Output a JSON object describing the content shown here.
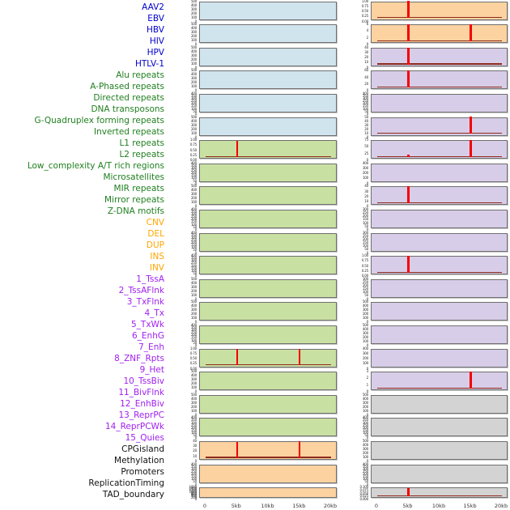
{
  "x_axis": {
    "tick_labels": [
      "0",
      "5kb",
      "10kb",
      "15kb",
      "20kb"
    ]
  },
  "colors": {
    "spike": "#f40000",
    "baseline": "#8f2a1a",
    "panel_border": "#6f6f6f",
    "tick_text": "#222222",
    "axis_text": "#333333",
    "background": "#ffffff"
  },
  "groups": {
    "virus": {
      "label_color": "#0000cd",
      "panel_color": "#d0e4ee"
    },
    "repeat": {
      "label_color": "#1f7f1f",
      "panel_color": "#c9e0a3"
    },
    "structural_variant": {
      "label_color": "#ffa500",
      "panel_color": "#fbd2a0"
    },
    "chromatin_state": {
      "label_color": "#a020f0",
      "panel_color": "#d8cde8"
    },
    "other": {
      "label_color": "#111111",
      "panel_color": "#d3d3d3"
    }
  },
  "chart_data": {
    "type": "bar",
    "title": "",
    "xlabel": "",
    "x_domain_kb": [
      0,
      20
    ],
    "x_tick_labels": [
      "0",
      "5kb",
      "10kb",
      "15kb",
      "20kb"
    ],
    "note": "44 genomic-feature tracks in two panel columns; red impulses mark signal peaks at ~5kb and ~15kb; spike height_frac is fraction of panel height",
    "tracks": [
      {
        "label": "AAV2",
        "group": "virus",
        "column": "left",
        "row": 1,
        "yticks": [
          "500",
          "400",
          "300",
          "200",
          "100",
          "0"
        ],
        "spikes": [],
        "baseline": false
      },
      {
        "label": "EBV",
        "group": "virus",
        "column": "left",
        "row": 2,
        "yticks": [
          "500",
          "400",
          "300",
          "200",
          "100",
          "0"
        ],
        "spikes": [],
        "baseline": false
      },
      {
        "label": "HBV",
        "group": "virus",
        "column": "left",
        "row": 3,
        "yticks": [
          "500",
          "400",
          "300",
          "200",
          "100",
          "0"
        ],
        "spikes": [],
        "baseline": false
      },
      {
        "label": "HIV",
        "group": "virus",
        "column": "left",
        "row": 4,
        "yticks": [
          "500",
          "400",
          "300",
          "200",
          "100",
          "0"
        ],
        "spikes": [],
        "baseline": false
      },
      {
        "label": "HPV",
        "group": "virus",
        "column": "left",
        "row": 5,
        "yticks": [
          "400",
          "350",
          "300",
          "250",
          "200",
          "150",
          "100",
          "50",
          "0"
        ],
        "spikes": [],
        "baseline": false
      },
      {
        "label": "HTLV-1",
        "group": "virus",
        "column": "left",
        "row": 6,
        "yticks": [
          "500",
          "400",
          "300",
          "200",
          "100",
          "0"
        ],
        "spikes": [],
        "baseline": false
      },
      {
        "label": "Alu repeats",
        "group": "repeat",
        "column": "left",
        "row": 7,
        "yticks": [
          "1.00",
          "0.75",
          "0.50",
          "0.25",
          "0.00"
        ],
        "spikes": [
          {
            "x_kb": 5,
            "height_frac": 0.95
          }
        ],
        "baseline": true
      },
      {
        "label": "A-Phased repeats",
        "group": "repeat",
        "column": "left",
        "row": 8,
        "yticks": [
          "400",
          "350",
          "300",
          "250",
          "200",
          "150",
          "100",
          "50",
          "0"
        ],
        "spikes": [],
        "baseline": false
      },
      {
        "label": "Directed repeats",
        "group": "repeat",
        "column": "left",
        "row": 9,
        "yticks": [
          "500",
          "400",
          "300",
          "200",
          "100",
          "0"
        ],
        "spikes": [],
        "baseline": false
      },
      {
        "label": "DNA transposons",
        "group": "repeat",
        "column": "left",
        "row": 10,
        "yticks": [
          "400",
          "350",
          "300",
          "250",
          "200",
          "150",
          "100",
          "50",
          "0"
        ],
        "spikes": [],
        "baseline": false
      },
      {
        "label": "G-Quadruplex forming repeats",
        "group": "repeat",
        "column": "left",
        "row": 11,
        "yticks": [
          "400",
          "350",
          "300",
          "250",
          "200",
          "150",
          "100",
          "50",
          "0"
        ],
        "spikes": [],
        "baseline": false
      },
      {
        "label": "Inverted repeats",
        "group": "repeat",
        "column": "left",
        "row": 12,
        "yticks": [
          "400",
          "350",
          "300",
          "250",
          "200",
          "150",
          "100",
          "50",
          "0"
        ],
        "spikes": [],
        "baseline": false
      },
      {
        "label": "L1 repeats",
        "group": "repeat",
        "column": "left",
        "row": 13,
        "yticks": [
          "500",
          "400",
          "300",
          "200",
          "100",
          "0"
        ],
        "spikes": [],
        "baseline": false
      },
      {
        "label": "L2 repeats",
        "group": "repeat",
        "column": "left",
        "row": 14,
        "yticks": [
          "500",
          "400",
          "300",
          "200",
          "100",
          "0"
        ],
        "spikes": [],
        "baseline": false
      },
      {
        "label": "Low_complexity A/T rich regions",
        "group": "repeat",
        "column": "left",
        "row": 15,
        "yticks": [
          "400",
          "350",
          "300",
          "250",
          "200",
          "150",
          "100",
          "50",
          "0"
        ],
        "spikes": [],
        "baseline": false
      },
      {
        "label": "Microsatellites",
        "group": "repeat",
        "column": "left",
        "row": 16,
        "yticks": [
          "1.00",
          "0.75",
          "0.50",
          "0.25",
          "0.00"
        ],
        "spikes": [
          {
            "x_kb": 5,
            "height_frac": 0.95
          },
          {
            "x_kb": 15,
            "height_frac": 0.95
          }
        ],
        "baseline": true
      },
      {
        "label": "MIR repeats",
        "group": "repeat",
        "column": "left",
        "row": 17,
        "yticks": [
          "500",
          "400",
          "300",
          "200",
          "100",
          "0"
        ],
        "spikes": [],
        "baseline": false
      },
      {
        "label": "Mirror repeats",
        "group": "repeat",
        "column": "left",
        "row": 18,
        "yticks": [
          "500",
          "400",
          "300",
          "200",
          "100",
          "0"
        ],
        "spikes": [],
        "baseline": false
      },
      {
        "label": "Z-DNA motifs",
        "group": "repeat",
        "column": "left",
        "row": 19,
        "yticks": [
          "400",
          "350",
          "300",
          "250",
          "200",
          "150",
          "100",
          "50",
          "0"
        ],
        "spikes": [],
        "baseline": false
      },
      {
        "label": "CNV",
        "group": "structural_variant",
        "column": "left",
        "row": 20,
        "yticks": [
          "40",
          "30",
          "20",
          "10",
          "0"
        ],
        "spikes": [
          {
            "x_kb": 5,
            "height_frac": 0.93
          },
          {
            "x_kb": 15,
            "height_frac": 1.0
          }
        ],
        "baseline": true
      },
      {
        "label": "DEL",
        "group": "structural_variant",
        "column": "left",
        "row": 21,
        "yticks": [
          "400",
          "350",
          "300",
          "250",
          "200",
          "150",
          "100",
          "50",
          "0"
        ],
        "spikes": [],
        "baseline": false
      },
      {
        "label": "DUP",
        "group": "structural_variant",
        "column": "left",
        "row": 22,
        "yticks": [
          "1600",
          "1400",
          "1200",
          "1000",
          "800",
          "600",
          "400",
          "200",
          "0"
        ],
        "spikes": [],
        "baseline": false
      },
      {
        "label": "INS",
        "group": "structural_variant",
        "column": "right",
        "row": 1,
        "yticks": [
          "1.00",
          "0.75",
          "0.50",
          "0.25",
          "0.00"
        ],
        "spikes": [
          {
            "x_kb": 5,
            "height_frac": 1.0
          }
        ],
        "baseline": true
      },
      {
        "label": "INV",
        "group": "structural_variant",
        "column": "right",
        "row": 2,
        "yticks": [
          "6",
          "4",
          "2",
          "0"
        ],
        "spikes": [
          {
            "x_kb": 5,
            "height_frac": 1.0
          },
          {
            "x_kb": 15,
            "height_frac": 1.0
          }
        ],
        "baseline": true
      },
      {
        "label": "1_TssA",
        "group": "chromatin_state",
        "column": "right",
        "row": 3,
        "yticks": [
          "40",
          "30",
          "20",
          "10",
          "0"
        ],
        "spikes": [
          {
            "x_kb": 5,
            "height_frac": 1.0
          }
        ],
        "baseline": true
      },
      {
        "label": "2_TssAFlnk",
        "group": "chromatin_state",
        "column": "right",
        "row": 4,
        "yticks": [
          "60",
          "40",
          "20",
          "0"
        ],
        "spikes": [
          {
            "x_kb": 5,
            "height_frac": 1.0
          }
        ],
        "baseline": true
      },
      {
        "label": "3_TxFlnk",
        "group": "chromatin_state",
        "column": "right",
        "row": 5,
        "yticks": [
          "400",
          "350",
          "300",
          "250",
          "200",
          "150",
          "100",
          "50",
          "0"
        ],
        "spikes": [],
        "baseline": false
      },
      {
        "label": "4_Tx",
        "group": "chromatin_state",
        "column": "right",
        "row": 6,
        "yticks": [
          "50",
          "40",
          "30",
          "20",
          "10",
          "0"
        ],
        "spikes": [
          {
            "x_kb": 15,
            "height_frac": 1.0
          }
        ],
        "baseline": true
      },
      {
        "label": "5_TxWk",
        "group": "chromatin_state",
        "column": "right",
        "row": 7,
        "yticks": [
          "75",
          "50",
          "25",
          "0"
        ],
        "spikes": [
          {
            "x_kb": 5,
            "height_frac": 0.13
          },
          {
            "x_kb": 15,
            "height_frac": 1.0
          }
        ],
        "baseline": true
      },
      {
        "label": "6_EnhG",
        "group": "chromatin_state",
        "column": "right",
        "row": 8,
        "yticks": [
          "400",
          "300",
          "200",
          "100",
          "0"
        ],
        "spikes": [],
        "baseline": false
      },
      {
        "label": "7_Enh",
        "group": "chromatin_state",
        "column": "right",
        "row": 9,
        "yticks": [
          "40",
          "30",
          "20",
          "10",
          "0"
        ],
        "spikes": [
          {
            "x_kb": 5,
            "height_frac": 1.0
          }
        ],
        "baseline": true
      },
      {
        "label": "8_ZNF_Rpts",
        "group": "chromatin_state",
        "column": "right",
        "row": 10,
        "yticks": [
          "300",
          "250",
          "200",
          "150",
          "100",
          "50",
          "0"
        ],
        "spikes": [],
        "baseline": false
      },
      {
        "label": "9_Het",
        "group": "chromatin_state",
        "column": "right",
        "row": 11,
        "yticks": [
          "300",
          "250",
          "200",
          "150",
          "100",
          "50",
          "0"
        ],
        "spikes": [],
        "baseline": false
      },
      {
        "label": "10_TssBiv",
        "group": "chromatin_state",
        "column": "right",
        "row": 12,
        "yticks": [
          "1.00",
          "0.75",
          "0.50",
          "0.25",
          "0.00"
        ],
        "spikes": [
          {
            "x_kb": 5,
            "height_frac": 1.0
          }
        ],
        "baseline": true
      },
      {
        "label": "11_BivFlnk",
        "group": "chromatin_state",
        "column": "right",
        "row": 13,
        "yticks": [
          "300",
          "250",
          "200",
          "150",
          "100",
          "50",
          "0"
        ],
        "spikes": [],
        "baseline": false
      },
      {
        "label": "12_EnhBiv",
        "group": "chromatin_state",
        "column": "right",
        "row": 14,
        "yticks": [
          "500",
          "400",
          "300",
          "200",
          "100",
          "0"
        ],
        "spikes": [],
        "baseline": false
      },
      {
        "label": "13_ReprPC",
        "group": "chromatin_state",
        "column": "right",
        "row": 15,
        "yticks": [
          "500",
          "400",
          "300",
          "200",
          "100",
          "0"
        ],
        "spikes": [],
        "baseline": false
      },
      {
        "label": "14_ReprPCWk",
        "group": "chromatin_state",
        "column": "right",
        "row": 16,
        "yticks": [
          "400",
          "300",
          "200",
          "100",
          "0"
        ],
        "spikes": [],
        "baseline": false
      },
      {
        "label": "15_Quies",
        "group": "chromatin_state",
        "column": "right",
        "row": 17,
        "yticks": [
          "3",
          "2",
          "1",
          "0"
        ],
        "spikes": [
          {
            "x_kb": 15,
            "height_frac": 1.0
          }
        ],
        "baseline": true
      },
      {
        "label": "CPGisland",
        "group": "other",
        "column": "right",
        "row": 18,
        "yticks": [
          "500",
          "400",
          "300",
          "200",
          "100",
          "0"
        ],
        "spikes": [],
        "baseline": false
      },
      {
        "label": "Methylation",
        "group": "other",
        "column": "right",
        "row": 19,
        "yticks": [
          "400",
          "350",
          "300",
          "250",
          "200",
          "150",
          "100",
          "50",
          "0"
        ],
        "spikes": [],
        "baseline": false
      },
      {
        "label": "Promoters",
        "group": "other",
        "column": "right",
        "row": 20,
        "yticks": [
          "500",
          "400",
          "300",
          "200",
          "100",
          "0"
        ],
        "spikes": [],
        "baseline": false
      },
      {
        "label": "ReplicationTiming",
        "group": "other",
        "column": "right",
        "row": 21,
        "yticks": [
          "400",
          "350",
          "300",
          "250",
          "200",
          "150",
          "100",
          "50",
          "0"
        ],
        "spikes": [],
        "baseline": false
      },
      {
        "label": "TAD_boundary",
        "group": "other",
        "column": "right",
        "row": 22,
        "yticks": [
          "0.100",
          "0.075",
          "0.050",
          "0.025",
          "0.000"
        ],
        "spikes": [
          {
            "x_kb": 5,
            "height_frac": 0.9
          }
        ],
        "baseline": true
      }
    ]
  }
}
